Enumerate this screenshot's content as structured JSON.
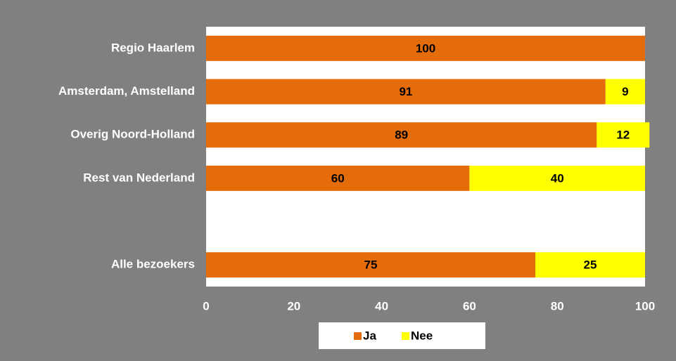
{
  "chart_data": {
    "type": "stacked_bar_horizontal",
    "categories": [
      "Regio Haarlem",
      "Amsterdam, Amstelland",
      "Overig Noord-Holland",
      "Rest van Nederland",
      null,
      "Alle bezoekers"
    ],
    "series": [
      {
        "name": "Ja",
        "color": "#e46c0a",
        "values": [
          100,
          91,
          89,
          60,
          null,
          75
        ]
      },
      {
        "name": "Nee",
        "color": "#ffff00",
        "values": [
          null,
          9,
          12,
          40,
          null,
          25
        ]
      }
    ],
    "xlim": [
      0,
      100
    ],
    "xticks": [
      0,
      20,
      40,
      60,
      80,
      100
    ],
    "grid": false,
    "legend": "bottom"
  }
}
